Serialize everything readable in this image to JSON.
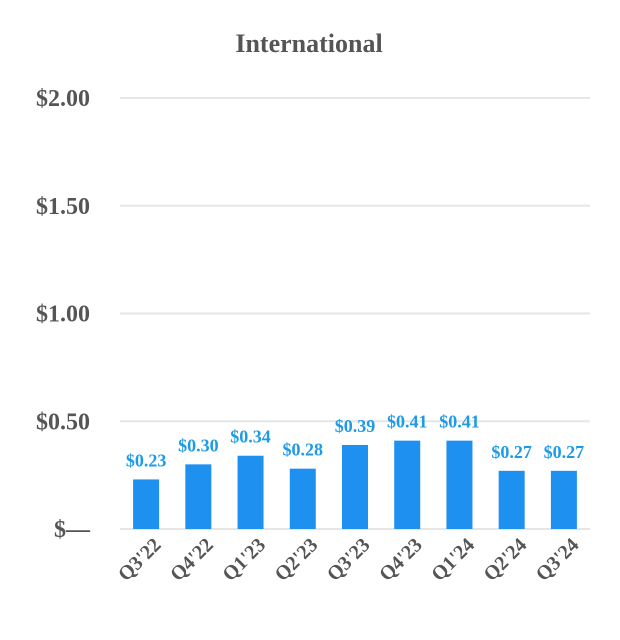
{
  "chart_data": {
    "type": "bar",
    "title": "International",
    "xlabel": "",
    "ylabel": "",
    "categories": [
      "Q3'22",
      "Q4'22",
      "Q1'23",
      "Q2'23",
      "Q3'23",
      "Q4'23",
      "Q1'24",
      "Q2'24",
      "Q3'24"
    ],
    "values": [
      0.23,
      0.3,
      0.34,
      0.28,
      0.39,
      0.41,
      0.41,
      0.27,
      0.27
    ],
    "data_labels": [
      "$0.23",
      "$0.30",
      "$0.34",
      "$0.28",
      "$0.39",
      "$0.41",
      "$0.41",
      "$0.27",
      "$0.27"
    ],
    "ylim": [
      0,
      2.0
    ],
    "yticks": [
      {
        "value": 0,
        "label": "$—"
      },
      {
        "value": 0.5,
        "label": "$0.50"
      },
      {
        "value": 1.0,
        "label": "$1.00"
      },
      {
        "value": 1.5,
        "label": "$1.50"
      },
      {
        "value": 2.0,
        "label": "$2.00"
      }
    ],
    "grid": true,
    "legend": "none",
    "colors": {
      "bar": "#1e90f0",
      "label": "#1e9be6",
      "text": "#555555",
      "grid": "#e6e6e6"
    }
  }
}
